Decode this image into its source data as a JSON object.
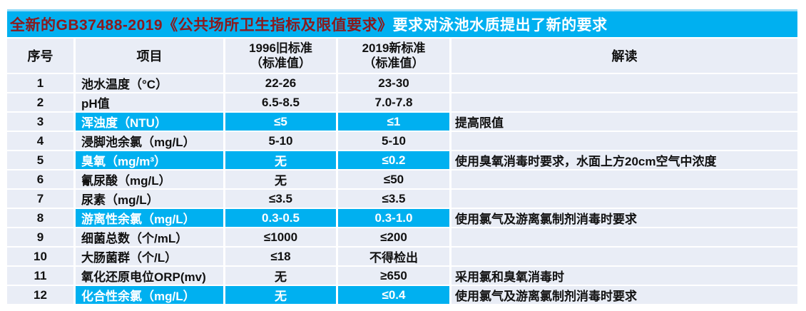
{
  "banner": {
    "title_standard": "全新的GB37488-2019《公共场所卫生指标及限值要求》",
    "title_rest": "要求对泳池水质提出了新的要求",
    "bg_color": "#00B0F0",
    "standard_text_color": "#8B1A1D",
    "rest_text_color": "#FFFFFF"
  },
  "table": {
    "headers": {
      "index": "序号",
      "item": "项目",
      "old_line1": "1996旧标准",
      "old_line2": "（标准值）",
      "new_line1": "2019新标准",
      "new_line2": "（标准值）",
      "note": "解读"
    },
    "rows": [
      {
        "num": "1",
        "item": "池水温度（°C）",
        "old": "22-26",
        "new": "23-30",
        "note": "",
        "highlight": false
      },
      {
        "num": "2",
        "item": "pH值",
        "old": "6.5-8.5",
        "new": "7.0-7.8",
        "note": "",
        "highlight": false
      },
      {
        "num": "3",
        "item": "浑浊度（NTU）",
        "old": "≤5",
        "new": "≤1",
        "note": "提高限值",
        "highlight": true
      },
      {
        "num": "4",
        "item": "浸脚池余氯（mg/L）",
        "old": "5-10",
        "new": "5-10",
        "note": "",
        "highlight": false
      },
      {
        "num": "5",
        "item": "臭氧（mg/m³）",
        "old": "无",
        "new": "≤0.2",
        "note": "使用臭氧消毒时要求，水面上方20cm空气中浓度",
        "highlight": true
      },
      {
        "num": "6",
        "item": "氰尿酸（mg/L）",
        "old": "无",
        "new": "≤50",
        "note": "",
        "highlight": false
      },
      {
        "num": "7",
        "item": "尿素（mg/L）",
        "old": "≤3.5",
        "new": "≤3.5",
        "note": "",
        "highlight": false
      },
      {
        "num": "8",
        "item": "游离性余氯（mg/L）",
        "old": "0.3-0.5",
        "new": "0.3-1.0",
        "note": "使用氯气及游离氯制剂消毒时要求",
        "highlight": true
      },
      {
        "num": "9",
        "item": "细菌总数（个/mL）",
        "old": "≤1000",
        "new": "≤200",
        "note": "",
        "highlight": false
      },
      {
        "num": "10",
        "item": "大肠菌群（个/L）",
        "old": "≤18",
        "new": "不得检出",
        "note": "",
        "highlight": false
      },
      {
        "num": "11",
        "item": "氧化还原电位ORP(mv)",
        "old": "无",
        "new": "≥650",
        "note": "采用氯和臭氧消毒时",
        "highlight": false
      },
      {
        "num": "12",
        "item": "化合性余氯（mg/L）",
        "old": "无",
        "new": "≤0.4",
        "note": "使用氯气及游离氯制剂消毒时要求",
        "highlight": true
      }
    ],
    "colors": {
      "row_bg": "#E9EDF6",
      "highlight_bg": "#00B0F0",
      "highlight_text": "#FFFFFF",
      "grid_line": "#FFFFFF",
      "body_text": "#111111"
    }
  }
}
